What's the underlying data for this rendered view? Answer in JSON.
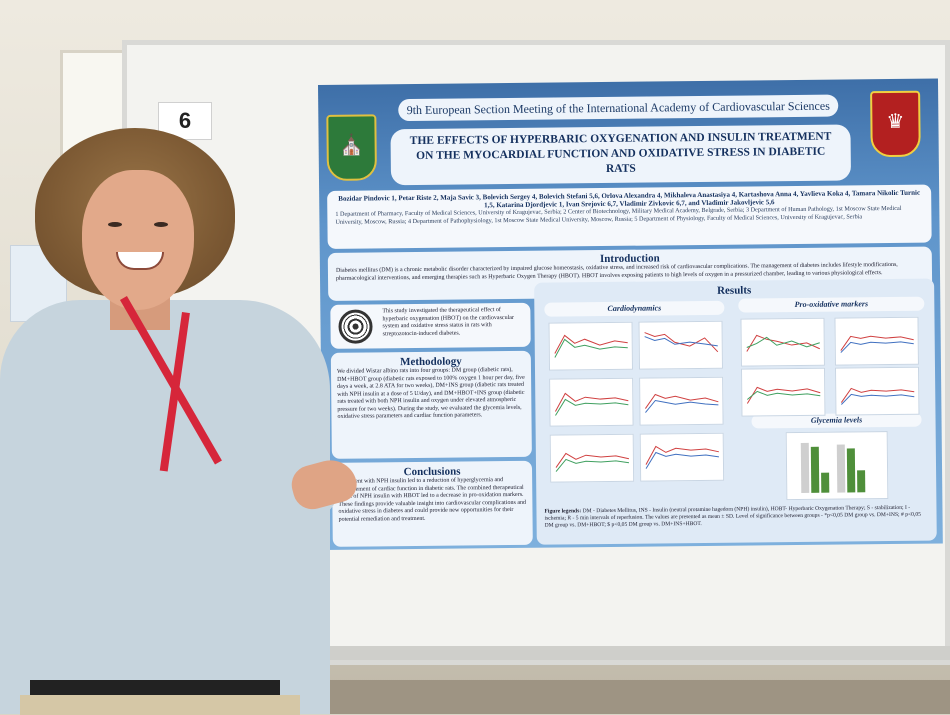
{
  "board_number": "6",
  "poster": {
    "conference": "9th European Section Meeting of the International Academy of Cardiovascular Sciences",
    "title": "THE EFFECTS OF HYPERBARIC OXYGENATION AND INSULIN TREATMENT ON THE MYOCARDIAL FUNCTION AND OXIDATIVE STRESS IN DIABETIC RATS",
    "authors": "Bozidar Pindovic 1, Petar Riste 2, Maja Savic 3, Bolevich Sergey 4, Bolevich Stefani 5,6, Orlova Alexandra 4, Mikhaleva Anastasiya 4, Kartashova Anna 4, Yavlieva Koka 4, Tamara Nikolic Turnic 1,5, Katarina Djordjevic 1, Ivan Srejovic 6,7, Vladimir Zivkovic 6,7, and Vladimir Jakovljevic 5,6",
    "affiliations": "1 Department of Pharmacy, Faculty of Medical Sciences, University of Kragujevac, Serbia; 2 Center of Biotechnology, Military Medical Academy, Belgrade, Serbia; 3 Department of Human Pathology, 1st Moscow State Medical University, Moscow, Russia; 4 Department of Pathophysiology, 1st Moscow State Medical University, Moscow, Russia; 5 Department of Physiology, Faculty of Medical Sciences, University of Kragujevac, Serbia",
    "introduction_title": "Introduction",
    "introduction_text": "Diabetes mellitus (DM) is a chronic metabolic disorder characterized by impaired glucose homeostasis, oxidative stress, and increased risk of cardiovascular complications. The management of diabetes includes lifestyle modifications, pharmacological interventions, and emerging therapies such as Hyperbaric Oxygen Therapy (HBOT). HBOT involves exposing patients to high levels of oxygen in a pressurized chamber, leading to various physiological effects.",
    "aim_text": "This study investigated the therapeutical effect of hyperbaric oxygenation (HBOT) on the cardiovascular system and oxidative stress status in rats with streptozotocin-induced diabetes.",
    "methodology_title": "Methodology",
    "methodology_text": "We divided Wistar albino rats into four groups: DM group (diabetic rats), DM+HBOT group (diabetic rats exposed to 100% oxygen 1 hour per day, five days a week, at 2.8 ATA for two weeks), DM+INS group (diabetic rats treated with NPH insulin at a dose of 5 U/day), and DM+HBOT+INS group (diabetic rats treated with both NPH insulin and oxygen under elevated atmospheric pressure for two weeks). During the study, we evaluated the glycemia levels, oxidative stress parameters and cardiac function parameters.",
    "conclusions_title": "Conclusions",
    "conclusions_text": "Treatment with NPH insulin led to a reduction of hyperglycemia and improvement of cardiac function in diabetic rats. The combined therapeutical effect of NPH insulin with HBOT led to a decrease in pro-oxidation markers. These findings provide valuable insight into cardiovascular complications and oxidative stress in diabetes and could provide new opportunities for their potential remediation and treatment.",
    "results_title": "Results",
    "cardiodynamics_label": "Cardiodynamics",
    "prooxidative_label": "Pro-oxidative markers",
    "glycemia_label": "Glycemia levels",
    "figure_legends_label": "Figure legends:",
    "figure_legends_text": "DM - Diabetes Mellitus, INS - Insulin (neutral protamine hagedorn (NPH) insulin), HOBT- Hyperbaric Oxygenation Therapy; S - stabilization; I - ischemia; R - 5 min intervals of reperfusion. The values are presented as mean ± SD. Level of significance between groups - *p<0,05 DM group vs. DM+INS; # p<0,05 DM group vs. DM+HBOT; $ p<0,05 DM group vs. DM+INS+HBOT."
  },
  "colors": {
    "poster_blue": "#5f95cb",
    "lanyard_red": "#d6263a",
    "shirt": "#c6d4dd"
  }
}
